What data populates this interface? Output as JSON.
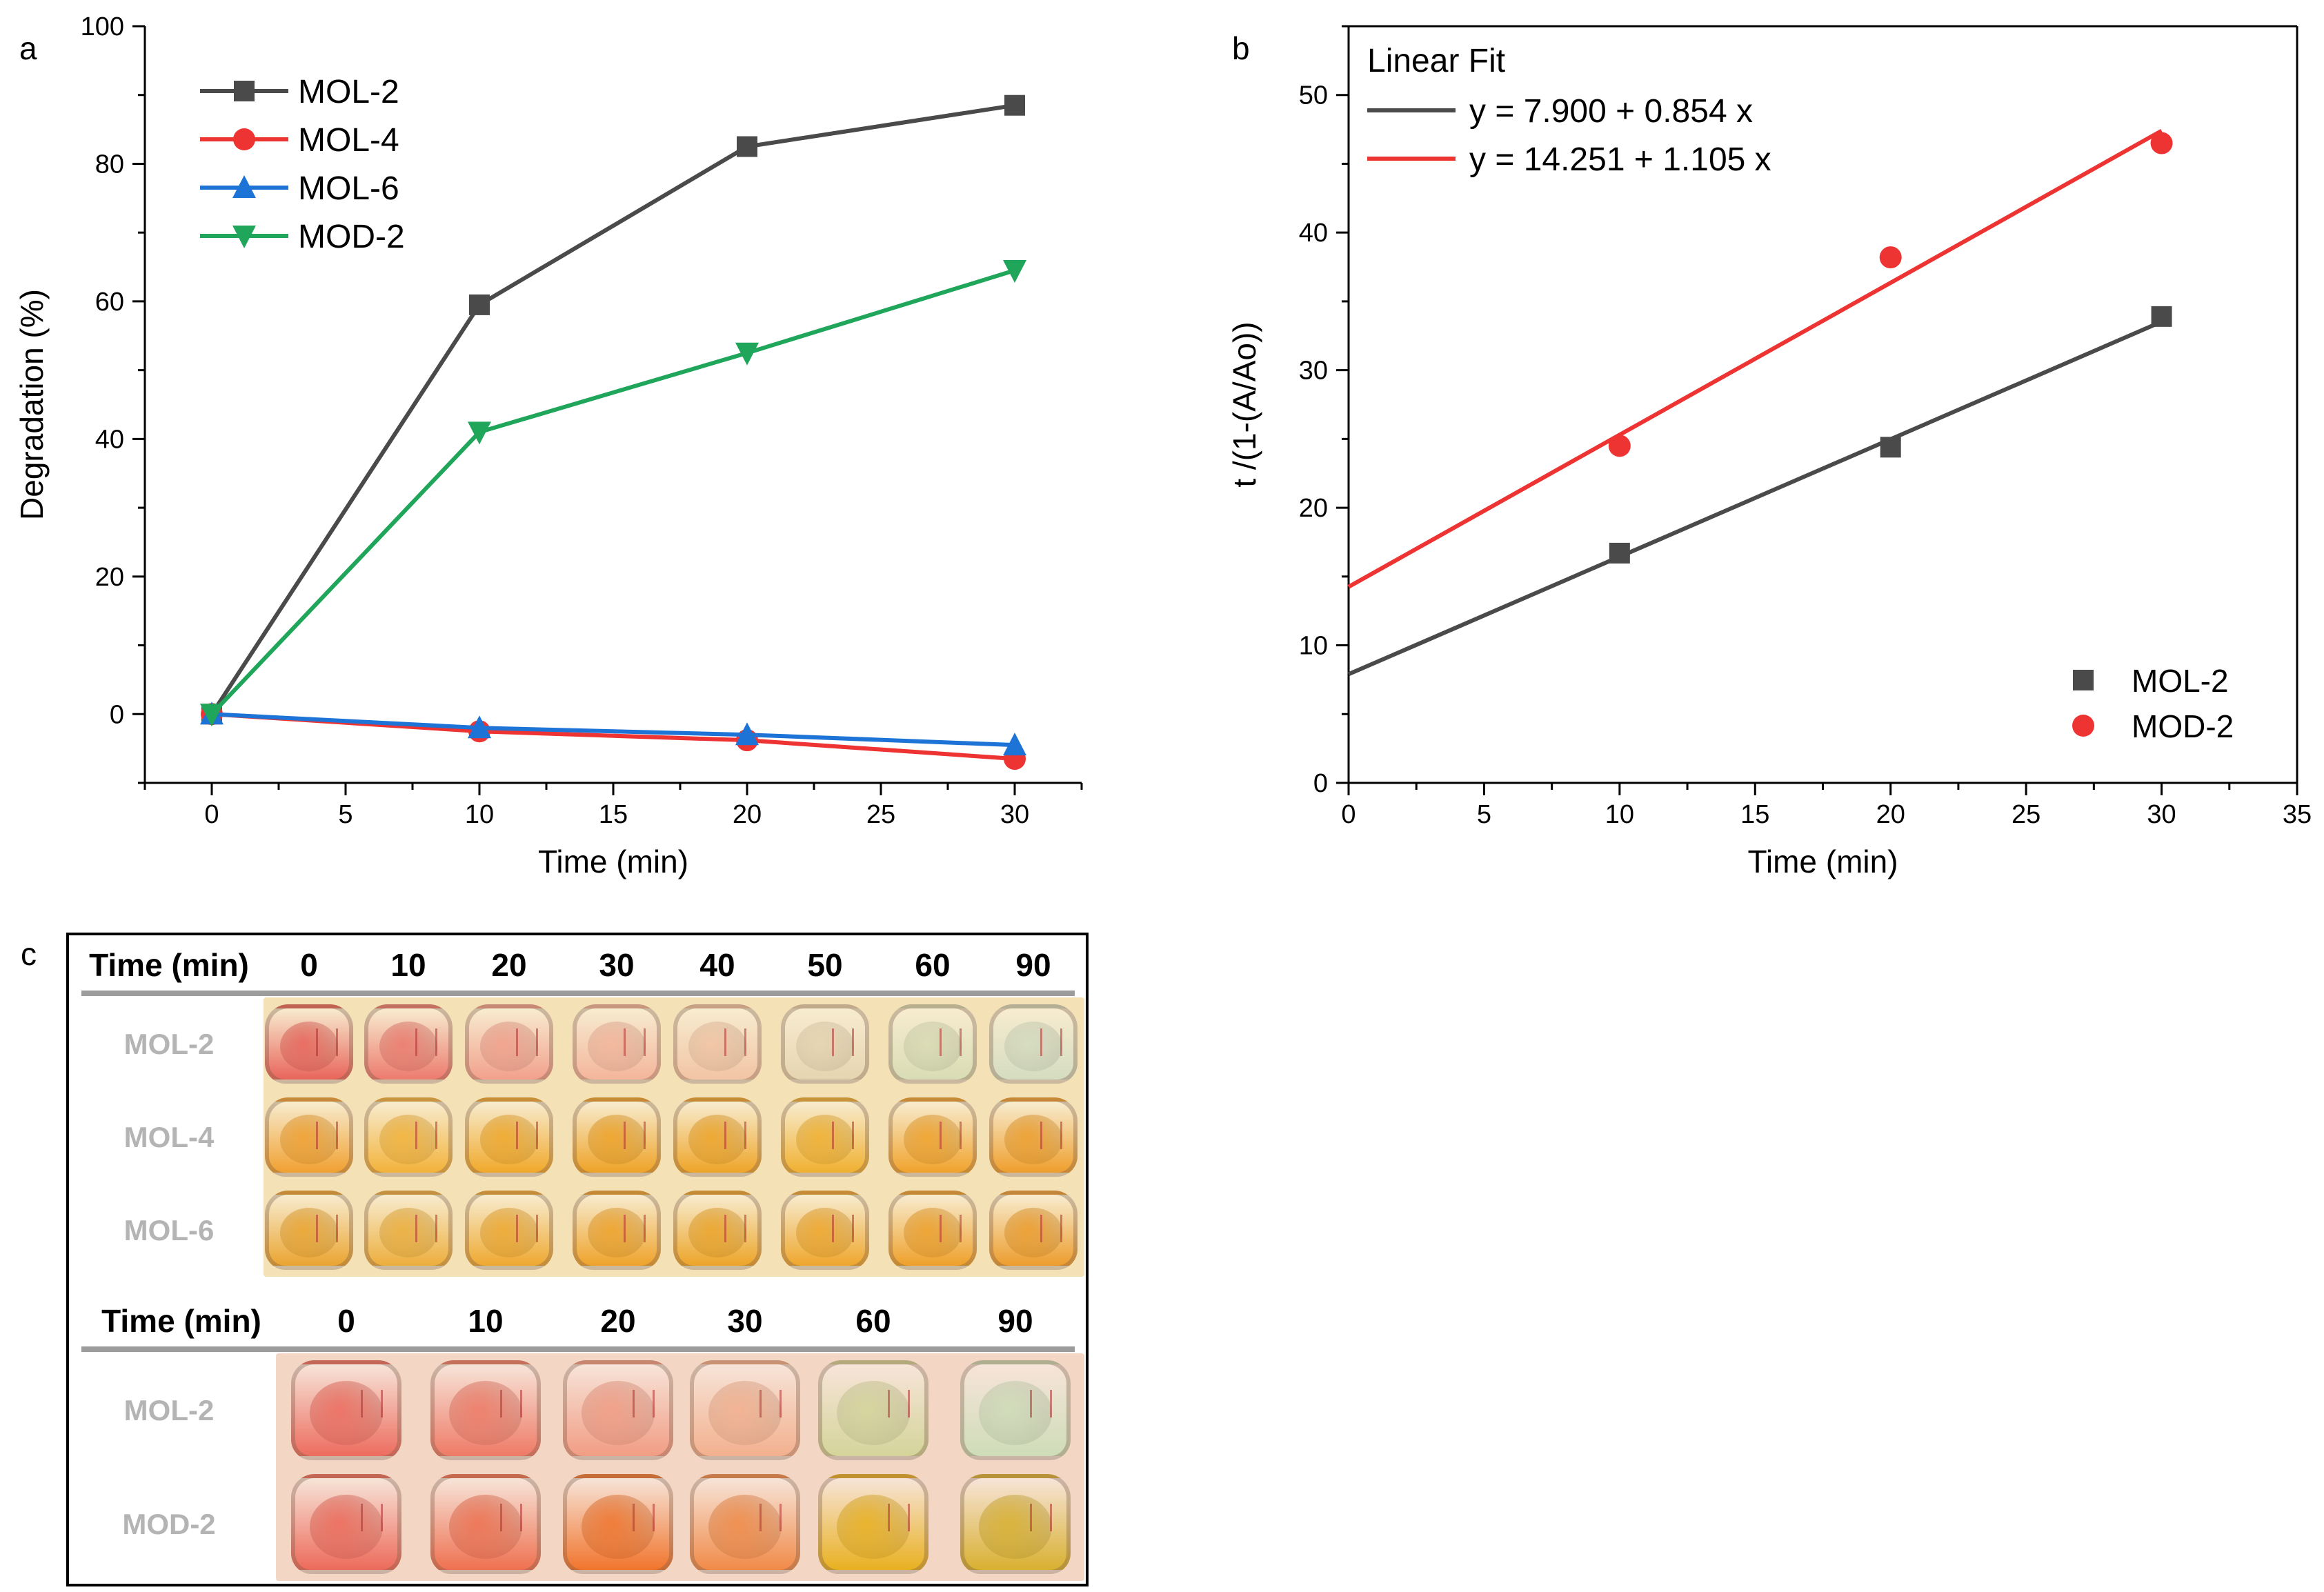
{
  "chart_data": [
    {
      "id": "a",
      "panel_letter": "a",
      "type": "line",
      "title": "",
      "xlabel": "Time (min)",
      "ylabel": "Degradation (%)",
      "xlim": [
        -2.5,
        32.5
      ],
      "ylim": [
        -10,
        100
      ],
      "xticks": [
        0,
        5,
        10,
        15,
        20,
        25,
        30
      ],
      "yticks": [
        0,
        20,
        40,
        60,
        80,
        100
      ],
      "grid": false,
      "legend_position": "top-left",
      "x": [
        0,
        10,
        20,
        30
      ],
      "series": [
        {
          "name": "MOL-2",
          "values": [
            0,
            59.5,
            82.5,
            88.5
          ],
          "color": "#4a4a4a",
          "marker": "square"
        },
        {
          "name": "MOL-4",
          "values": [
            0,
            -2.5,
            -3.8,
            -6.5
          ],
          "color": "#ee3333",
          "marker": "circle"
        },
        {
          "name": "MOL-6",
          "values": [
            0,
            -2,
            -3,
            -4.5
          ],
          "color": "#1e74d6",
          "marker": "triangle-up"
        },
        {
          "name": "MOD-2",
          "values": [
            0,
            41,
            52.5,
            64.5
          ],
          "color": "#1fa65a",
          "marker": "triangle-down"
        }
      ]
    },
    {
      "id": "b",
      "panel_letter": "b",
      "type": "scatter",
      "title": "",
      "xlabel": "Time (min)",
      "ylabel": "t /(1-(A/Ao))",
      "xlim": [
        0,
        35
      ],
      "ylim": [
        0,
        55
      ],
      "xticks": [
        0,
        5,
        10,
        15,
        20,
        25,
        30,
        35
      ],
      "yticks": [
        0,
        10,
        20,
        30,
        40,
        50
      ],
      "grid": false,
      "fit_legend_title": "Linear Fit",
      "fit_legend_position": "top-left",
      "legend_position": "bottom-right",
      "series": [
        {
          "name": "MOL-2",
          "x": [
            10,
            20,
            30
          ],
          "y": [
            16.7,
            24.4,
            33.9
          ],
          "color": "#4a4a4a",
          "marker": "square",
          "fit": {
            "intercept": 7.9,
            "slope": 0.854,
            "label": "y = 7.900 + 0.854 x",
            "x_range": [
              0,
              30
            ]
          }
        },
        {
          "name": "MOD-2",
          "x": [
            10,
            20,
            30
          ],
          "y": [
            24.5,
            38.2,
            46.5
          ],
          "color": "#ee3333",
          "marker": "circle",
          "fit": {
            "intercept": 14.251,
            "slope": 1.105,
            "label": "y = 14.251 + 1.105 x",
            "x_range": [
              0,
              30
            ]
          }
        }
      ]
    }
  ],
  "panel_c": {
    "letter": "c",
    "top": {
      "header_label": "Time (min)",
      "times": [
        "0",
        "10",
        "20",
        "30",
        "40",
        "50",
        "60",
        "90"
      ],
      "rows": [
        {
          "label": "MOL-2",
          "colors": [
            "#e8645a",
            "#ec7a6e",
            "#f1a08c",
            "#f3b59b",
            "#f1c4a4",
            "#e6d4b0",
            "#d8dcb4",
            "#d4dcc0"
          ]
        },
        {
          "label": "MOL-4",
          "colors": [
            "#f0a030",
            "#f2b23a",
            "#f0a82a",
            "#eea226",
            "#eea428",
            "#f0b030",
            "#f0a22c",
            "#ee9e2c"
          ]
        },
        {
          "label": "MOL-6",
          "colors": [
            "#eaa430",
            "#ecae3c",
            "#eea830",
            "#eea22a",
            "#eca428",
            "#eea62c",
            "#eea02a",
            "#ec9c2c"
          ]
        }
      ],
      "photo_bg": "#f4e2b6"
    },
    "bottom": {
      "header_label": "Time (min)",
      "times": [
        "0",
        "10",
        "20",
        "30",
        "60",
        "90"
      ],
      "rows": [
        {
          "label": "MOL-2",
          "colors": [
            "#ec6c5e",
            "#ee7a66",
            "#f19c84",
            "#f2b08e",
            "#d4d49a",
            "#cedcb8"
          ]
        },
        {
          "label": "MOD-2",
          "colors": [
            "#ec6a5a",
            "#ee7050",
            "#f0742c",
            "#f08a48",
            "#e8b020",
            "#d8b030"
          ]
        }
      ],
      "photo_bg": "#f3d6c4"
    }
  }
}
